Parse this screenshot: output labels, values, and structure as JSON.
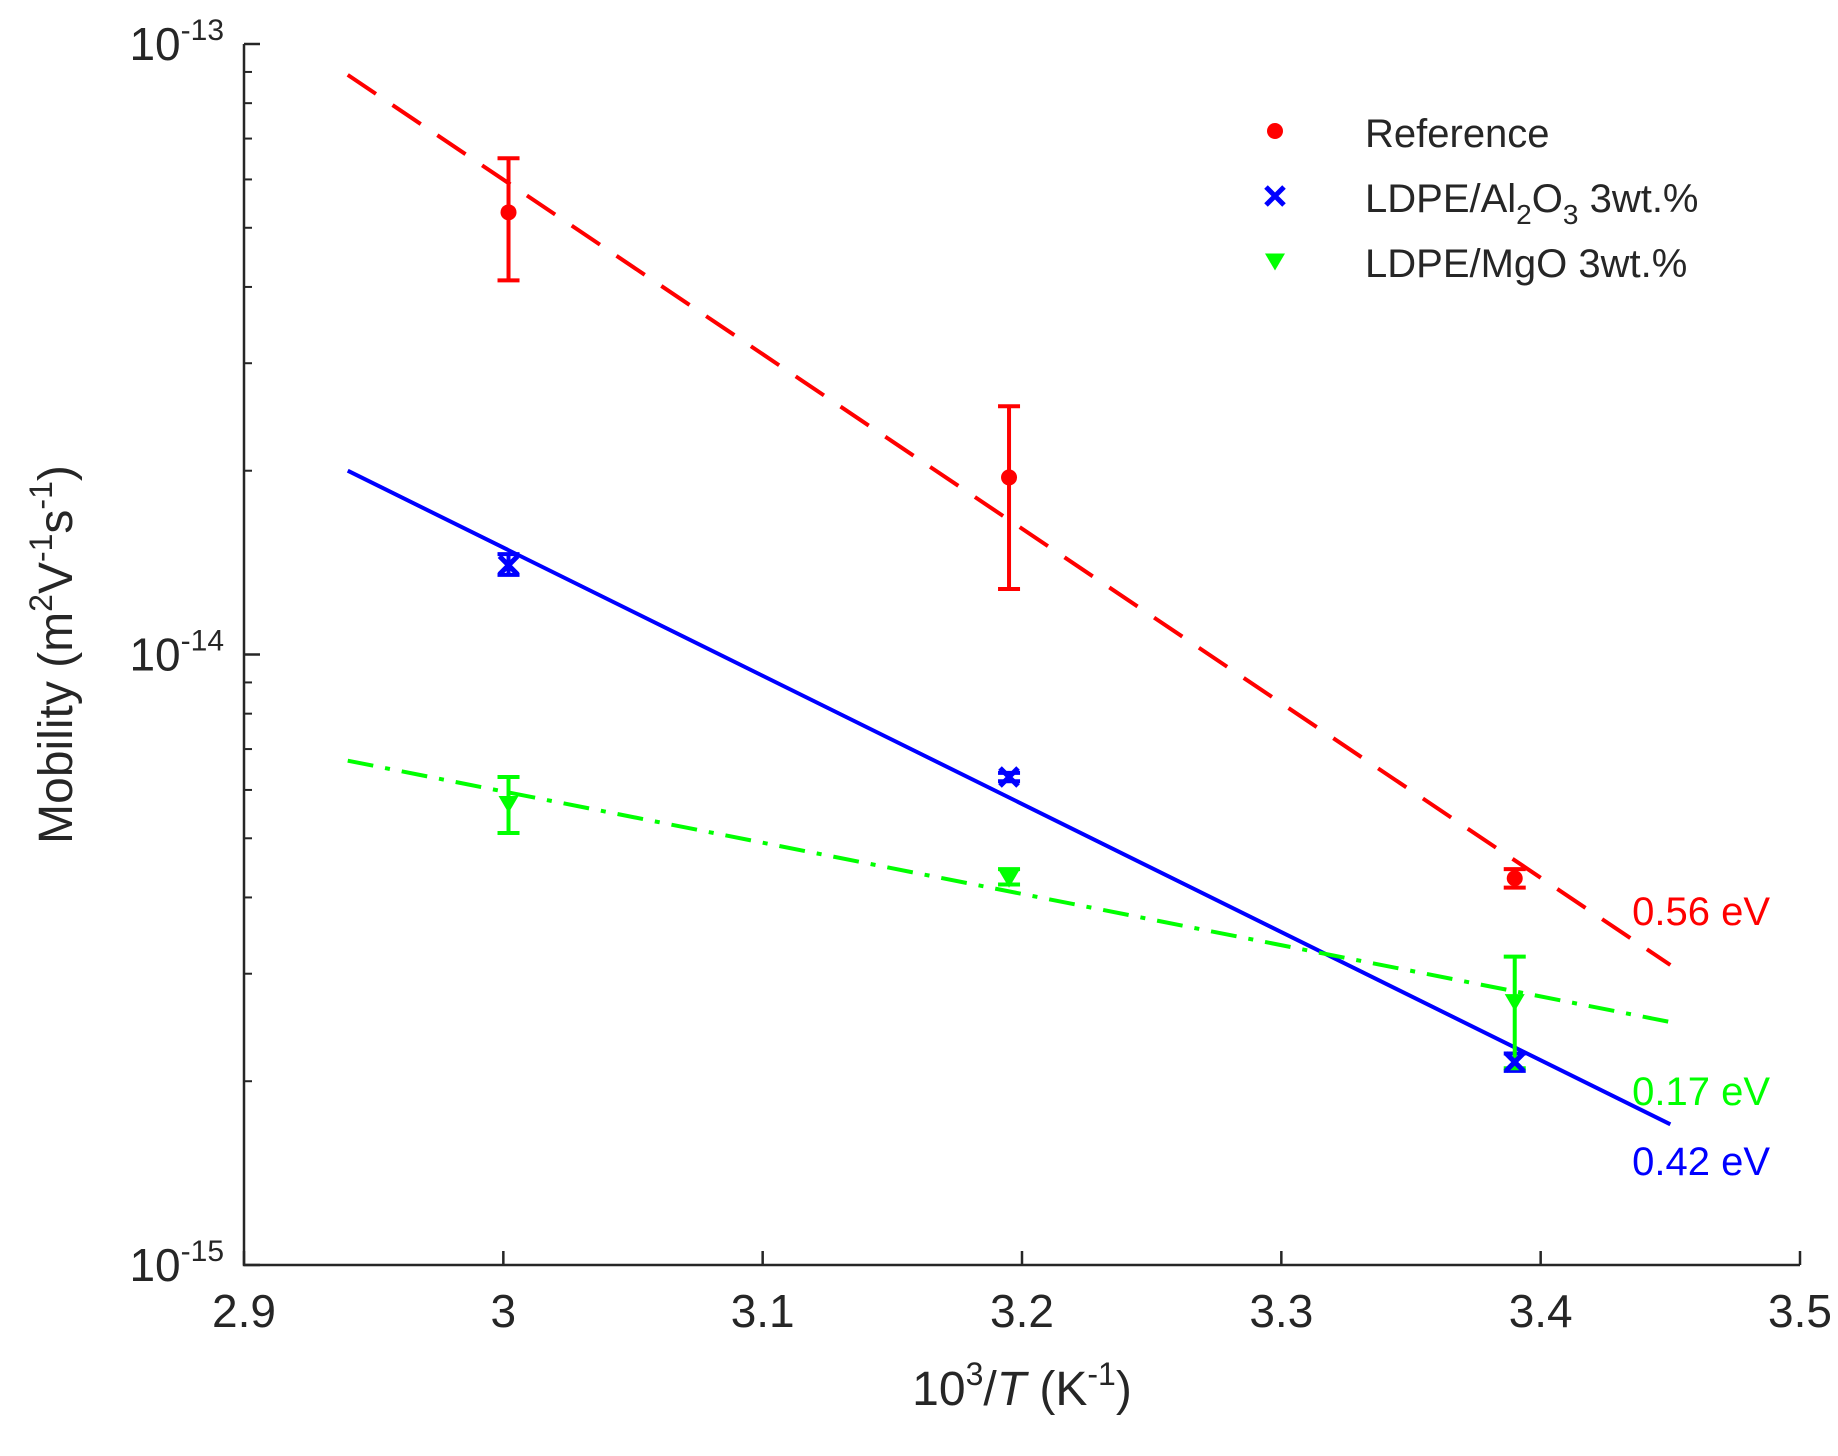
{
  "chart_data": {
    "type": "scatter",
    "title": "",
    "xlabel": {
      "base": "10",
      "exp": "3",
      "slash": "/",
      "var": "T",
      "unit_open": " (K",
      "unit_exp": "-1",
      "unit_close": ")"
    },
    "ylabel": {
      "prefix": "Mobility (m",
      "exp1": "2",
      "mid1": "V",
      "exp2": "-1",
      "mid2": "s",
      "exp3": "-1",
      "suffix": ")"
    },
    "xlim": [
      2.9,
      3.5
    ],
    "ylim": [
      1e-15,
      1e-13
    ],
    "yscale": "log",
    "xticks": [
      {
        "value": 2.9,
        "label": "2.9"
      },
      {
        "value": 3.0,
        "label": "3"
      },
      {
        "value": 3.1,
        "label": "3.1"
      },
      {
        "value": 3.2,
        "label": "3.2"
      },
      {
        "value": 3.3,
        "label": "3.3"
      },
      {
        "value": 3.4,
        "label": "3.4"
      },
      {
        "value": 3.5,
        "label": "3.5"
      }
    ],
    "yticks": [
      {
        "value": 1e-13,
        "base": "10",
        "exp": "-13"
      },
      {
        "value": 1e-14,
        "base": "10",
        "exp": "-14"
      },
      {
        "value": 1e-15,
        "base": "10",
        "exp": "-15"
      }
    ],
    "legend_position": "top-right",
    "series": [
      {
        "name": "Reference",
        "legend": {
          "parts": [
            {
              "t": "Reference"
            }
          ]
        },
        "color": "#ff0000",
        "marker": "dot",
        "line_style": "dashed",
        "x": [
          3.002,
          3.195,
          3.39
        ],
        "y": [
          5.3e-14,
          1.95e-14,
          4.3e-15
        ],
        "err_low": [
          4.1e-14,
          1.28e-14,
          4.15e-15
        ],
        "err_high": [
          6.5e-14,
          2.55e-14,
          4.45e-15
        ],
        "fit": {
          "x": [
            2.94,
            3.45
          ],
          "y": [
            8.9e-14,
            3.1e-15
          ]
        },
        "activation_energy": "0.56 eV"
      },
      {
        "name": "LDPE/Al2O3 3wt.%",
        "legend": {
          "parts": [
            {
              "t": "LDPE/Al"
            },
            {
              "t": "2",
              "sub": true
            },
            {
              "t": "O"
            },
            {
              "t": "3",
              "sub": true
            },
            {
              "t": " 3wt.%"
            }
          ]
        },
        "color": "#0000ff",
        "marker": "x",
        "line_style": "solid",
        "x": [
          3.002,
          3.195,
          3.39
        ],
        "y": [
          1.4e-14,
          6.3e-15,
          2.15e-15
        ],
        "err_low": [
          1.35e-14,
          6.2e-15,
          2.08e-15
        ],
        "err_high": [
          1.46e-14,
          6.4e-15,
          2.22e-15
        ],
        "fit": {
          "x": [
            2.94,
            3.45
          ],
          "y": [
            2e-14,
            1.7e-15
          ]
        },
        "activation_energy": "0.42 eV"
      },
      {
        "name": "LDPE/MgO 3wt.%",
        "legend": {
          "parts": [
            {
              "t": "LDPE/MgO 3wt.%"
            }
          ]
        },
        "color": "#00ff00",
        "marker": "triangle-down",
        "line_style": "dashdot",
        "x": [
          3.002,
          3.195,
          3.39
        ],
        "y": [
          5.7e-15,
          4.3e-15,
          2.7e-15
        ],
        "err_low": [
          5.1e-15,
          4.2e-15,
          2.1e-15
        ],
        "err_high": [
          6.3e-15,
          4.45e-15,
          3.2e-15
        ],
        "fit": {
          "x": [
            2.94,
            3.45
          ],
          "y": [
            6.7e-15,
            2.5e-15
          ]
        },
        "activation_energy": "0.17 eV"
      }
    ]
  }
}
